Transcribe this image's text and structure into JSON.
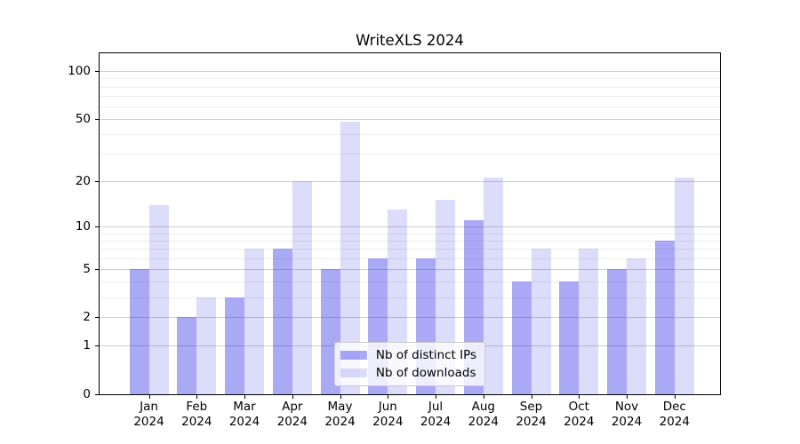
{
  "chart_data": {
    "type": "bar",
    "title": "WriteXLS 2024",
    "months": [
      "Jan",
      "Feb",
      "Mar",
      "Apr",
      "May",
      "Jun",
      "Jul",
      "Aug",
      "Sep",
      "Oct",
      "Nov",
      "Dec"
    ],
    "x_tick_year": "2024",
    "categories": [
      "Jan 2024",
      "Feb 2024",
      "Mar 2024",
      "Apr 2024",
      "May 2024",
      "Jun 2024",
      "Jul 2024",
      "Aug 2024",
      "Sep 2024",
      "Oct 2024",
      "Nov 2024",
      "Dec 2024"
    ],
    "series": [
      {
        "name": "Nb of distinct IPs",
        "color": "rgba(10,10,230,0.35)",
        "values": [
          5,
          2,
          3,
          7,
          5,
          6,
          6,
          11,
          4,
          4,
          5,
          8
        ]
      },
      {
        "name": "Nb of downloads",
        "color": "rgba(10,10,230,0.14)",
        "values": [
          14,
          3,
          7,
          20,
          48,
          13,
          15,
          21,
          7,
          7,
          6,
          21
        ]
      }
    ],
    "yscale": "log1p",
    "ylim": [
      0,
      129.4
    ],
    "y_major_ticks": [
      0,
      1,
      2,
      5,
      10,
      20,
      50,
      100
    ],
    "y_minor_gridlines": [
      3,
      4,
      6,
      7,
      8,
      9,
      30,
      40,
      60,
      70,
      80,
      90
    ],
    "grid": {
      "major_color": "#cfcfcf",
      "minor_color": "#ededed"
    },
    "axis_color": "#000000",
    "background": "#ffffff",
    "legend": {
      "position": "lower center",
      "bg": "rgba(255,255,255,0.8)",
      "border": "#c9c9c9"
    }
  }
}
